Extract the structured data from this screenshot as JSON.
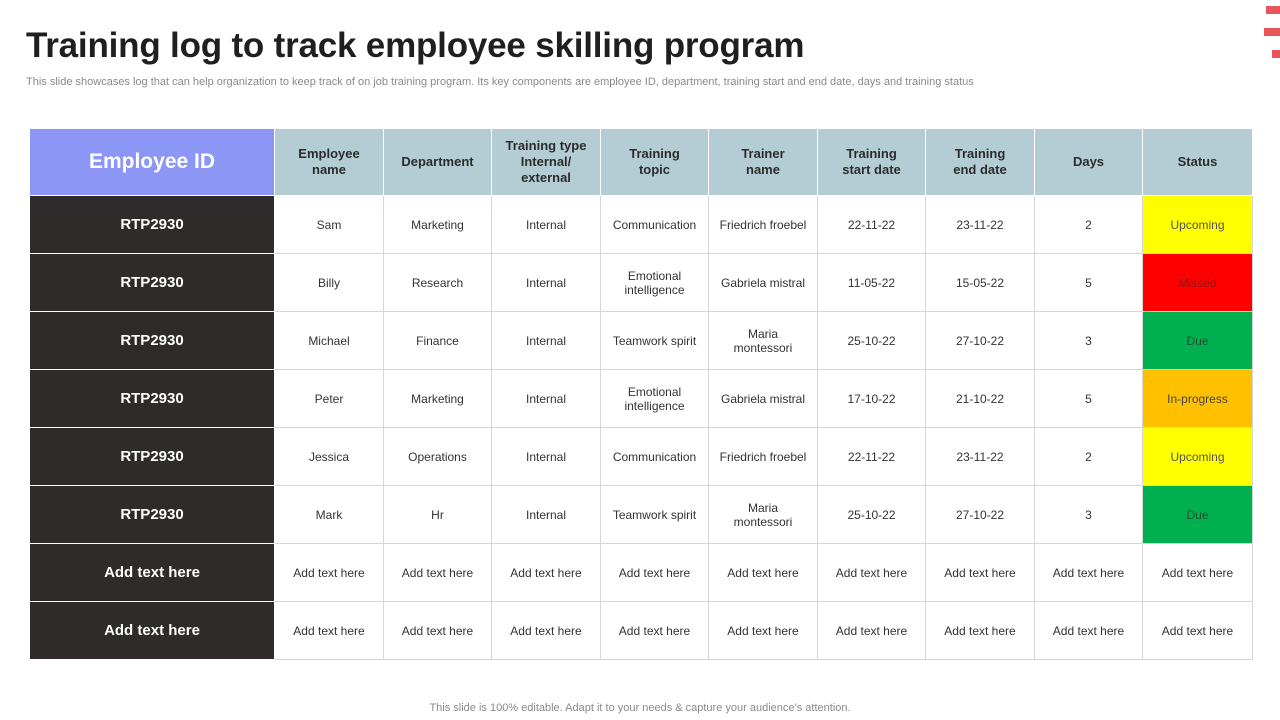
{
  "title": "Training log to track employee skilling program",
  "subtitle": "This slide showcases log that can help organization to keep track of on job training program. Its key components are employee ID, department, training start and end date, days and training status",
  "headers": {
    "employee_id": "Employee ID",
    "employee_name": [
      "Employee",
      "name"
    ],
    "department": "Department",
    "training_type": [
      "Training type",
      "Internal/",
      "external"
    ],
    "training_topic": [
      "Training",
      "topic"
    ],
    "trainer_name": [
      "Trainer",
      "name"
    ],
    "start_date": [
      "Training",
      "start date"
    ],
    "end_date": [
      "Training",
      "end date"
    ],
    "days": "Days",
    "status": "Status"
  },
  "rows": [
    {
      "id": "RTP2930",
      "name": "Sam",
      "department": "Marketing",
      "type": "Internal",
      "topic": [
        "Communication"
      ],
      "trainer": [
        "Friedrich froebel"
      ],
      "start": "22-11-22",
      "end": "23-11-22",
      "days": "2",
      "status": "Upcoming"
    },
    {
      "id": "RTP2930",
      "name": "Billy",
      "department": "Research",
      "type": "Internal",
      "topic": [
        "Emotional",
        "intelligence"
      ],
      "trainer": [
        "Gabriela mistral"
      ],
      "start": "11-05-22",
      "end": "15-05-22",
      "days": "5",
      "status": "Missed"
    },
    {
      "id": "RTP2930",
      "name": "Michael",
      "department": "Finance",
      "type": "Internal",
      "topic": [
        "Teamwork spirit"
      ],
      "trainer": [
        "Maria",
        "montessori"
      ],
      "start": "25-10-22",
      "end": "27-10-22",
      "days": "3",
      "status": "Due"
    },
    {
      "id": "RTP2930",
      "name": "Peter",
      "department": "Marketing",
      "type": "Internal",
      "topic": [
        "Emotional",
        "intelligence"
      ],
      "trainer": [
        "Gabriela mistral"
      ],
      "start": "17-10-22",
      "end": "21-10-22",
      "days": "5",
      "status": "In-progress"
    },
    {
      "id": "RTP2930",
      "name": "Jessica",
      "department": "Operations",
      "type": "Internal",
      "topic": [
        "Communication"
      ],
      "trainer": [
        "Friedrich froebel"
      ],
      "start": "22-11-22",
      "end": "23-11-22",
      "days": "2",
      "status": "Upcoming"
    },
    {
      "id": "RTP2930",
      "name": "Mark",
      "department": "Hr",
      "type": "Internal",
      "topic": [
        "Teamwork spirit"
      ],
      "trainer": [
        "Maria",
        "montessori"
      ],
      "start": "25-10-22",
      "end": "27-10-22",
      "days": "3",
      "status": "Due"
    },
    {
      "id": "Add text here",
      "name": "Add text here",
      "department": "Add text here",
      "type": "Add text here",
      "topic": [
        "Add text here"
      ],
      "trainer": [
        "Add text here"
      ],
      "start": "Add text here",
      "end": "Add text here",
      "days": "Add text here",
      "status": "Add text here"
    },
    {
      "id": "Add text here",
      "name": "Add text here",
      "department": "Add text here",
      "type": "Add text here",
      "topic": [
        "Add text here"
      ],
      "trainer": [
        "Add text here"
      ],
      "start": "Add text here",
      "end": "Add text here",
      "days": "Add text here",
      "status": "Add text here"
    }
  ],
  "status_colors": {
    "Upcoming": "#ffff00",
    "Missed": "#ff0000",
    "Due": "#00b050",
    "In-progress": "#ffc000"
  },
  "footer": "This slide is 100% editable. Adapt it to your needs & capture your audience’s attention."
}
